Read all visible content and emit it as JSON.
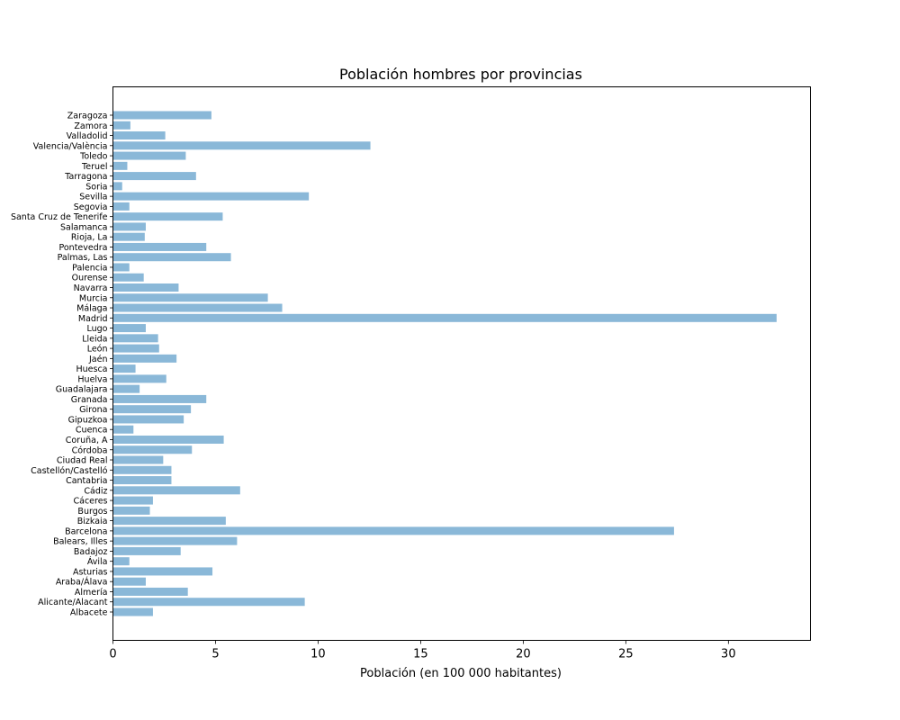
{
  "chart_data": {
    "type": "bar",
    "orientation": "horizontal",
    "title": "Población hombres por provincias",
    "xlabel": "Población (en 100 000 habitantes)",
    "ylabel": "",
    "xlim": [
      0,
      34
    ],
    "xticks": [
      0,
      5,
      10,
      15,
      20,
      25,
      30
    ],
    "bar_color": "#8ab8d8",
    "grid": false,
    "categories": [
      "Albacete",
      "Alicante/Alacant",
      "Almería",
      "Araba/Álava",
      "Asturias",
      "Ávila",
      "Badajoz",
      "Balears, Illes",
      "Barcelona",
      "Bizkaia",
      "Burgos",
      "Cáceres",
      "Cádiz",
      "Cantabria",
      "Castellón/Castelló",
      "Ciudad Real",
      "Córdoba",
      "Coruña, A",
      "Cuenca",
      "Gipuzkoa",
      "Girona",
      "Granada",
      "Guadalajara",
      "Huelva",
      "Huesca",
      "Jaén",
      "León",
      "Lleida",
      "Lugo",
      "Madrid",
      "Málaga",
      "Murcia",
      "Navarra",
      "Ourense",
      "Palencia",
      "Palmas, Las",
      "Pontevedra",
      "Rioja, La",
      "Salamanca",
      "Santa Cruz de Tenerife",
      "Segovia",
      "Sevilla",
      "Soria",
      "Tarragona",
      "Teruel",
      "Toledo",
      "Valencia/València",
      "Valladolid",
      "Zamora",
      "Zaragoza"
    ],
    "values": [
      1.95,
      9.35,
      3.65,
      1.6,
      4.85,
      0.8,
      3.3,
      6.05,
      27.35,
      5.5,
      1.8,
      1.95,
      6.2,
      2.85,
      2.85,
      2.45,
      3.85,
      5.4,
      1.0,
      3.45,
      3.8,
      4.55,
      1.3,
      2.6,
      1.1,
      3.1,
      2.25,
      2.2,
      1.6,
      32.35,
      8.25,
      7.55,
      3.2,
      1.5,
      0.8,
      5.75,
      4.55,
      1.55,
      1.6,
      5.35,
      0.8,
      9.55,
      0.45,
      4.05,
      0.7,
      3.55,
      12.55,
      2.55,
      0.85,
      4.8
    ]
  }
}
